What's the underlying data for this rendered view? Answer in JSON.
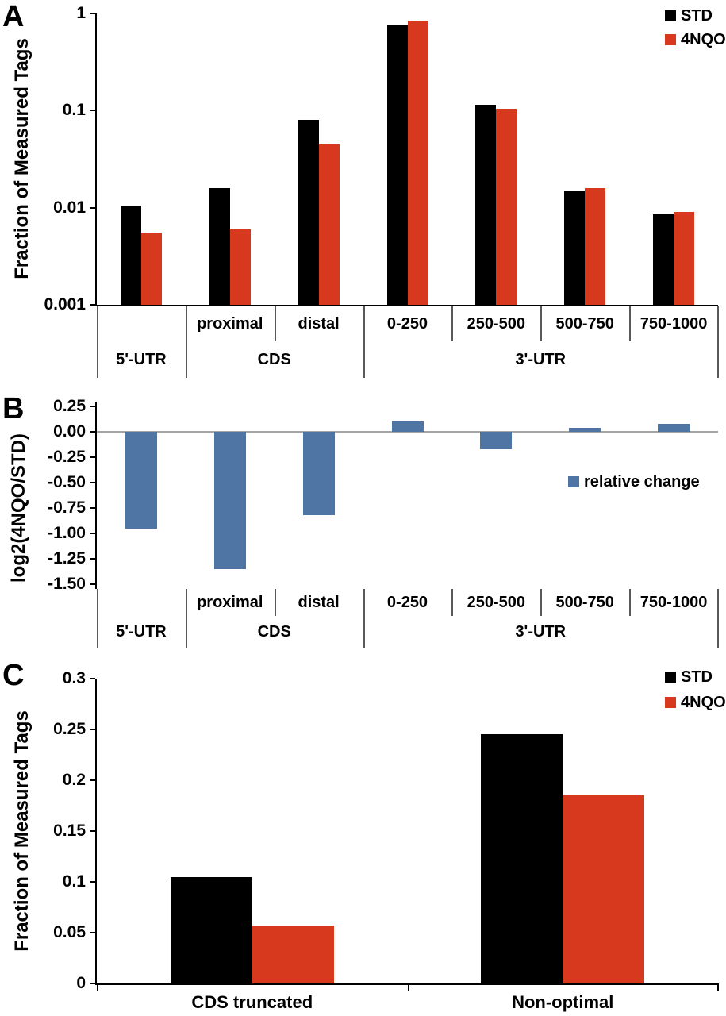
{
  "colors": {
    "std": "#000000",
    "nqo": "#d6391e",
    "blue": "#4e75a3",
    "axis": "#000000",
    "zero_line": "#a6a6a6",
    "separator": "#595959"
  },
  "chart_data": [
    {
      "id": "panel-a",
      "panel_label": "A",
      "type": "bar",
      "scale": "log",
      "title": "",
      "ylabel": "Fraction of Measured Tags",
      "xlabel": "",
      "ylim": [
        0.001,
        1
      ],
      "yticks": [
        "1",
        "0.1",
        "0.01",
        "0.001"
      ],
      "ytick_values": [
        1,
        0.1,
        0.01,
        0.001
      ],
      "grid": false,
      "legend_position": "top-right",
      "categories": [
        "",
        "proximal",
        "distal",
        "0-250",
        "250-500",
        "500-750",
        "750-1000"
      ],
      "groups": [
        {
          "label": "5'-UTR",
          "span": [
            0,
            0
          ]
        },
        {
          "label": "CDS",
          "span": [
            1,
            2
          ]
        },
        {
          "label": "3'-UTR",
          "span": [
            3,
            6
          ]
        }
      ],
      "series": [
        {
          "name": "STD",
          "color_key": "std",
          "values": [
            0.0105,
            0.016,
            0.08,
            0.75,
            0.115,
            0.015,
            0.0085
          ]
        },
        {
          "name": "4NQO",
          "color_key": "nqo",
          "values": [
            0.0055,
            0.006,
            0.045,
            0.85,
            0.105,
            0.016,
            0.009
          ]
        }
      ]
    },
    {
      "id": "panel-b",
      "panel_label": "B",
      "type": "bar",
      "scale": "linear",
      "title": "",
      "ylabel": "log2(4NQO/STD)",
      "xlabel": "",
      "ylim": [
        -1.5,
        0.25
      ],
      "yticks": [
        "0.25",
        "0.00",
        "-0.25",
        "-0.50",
        "-0.75",
        "-1.00",
        "-1.25",
        "-1.50"
      ],
      "ytick_values": [
        0.25,
        0,
        -0.25,
        -0.5,
        -0.75,
        -1,
        -1.25,
        -1.5
      ],
      "grid": false,
      "legend_position": "middle-right",
      "categories": [
        "",
        "proximal",
        "distal",
        "0-250",
        "250-500",
        "500-750",
        "750-1000"
      ],
      "groups": [
        {
          "label": "5'-UTR",
          "span": [
            0,
            0
          ]
        },
        {
          "label": "CDS",
          "span": [
            1,
            2
          ]
        },
        {
          "label": "3'-UTR",
          "span": [
            3,
            6
          ]
        }
      ],
      "series": [
        {
          "name": "relative change",
          "color_key": "blue",
          "values": [
            -0.95,
            -1.35,
            -0.82,
            0.1,
            -0.17,
            0.04,
            0.08
          ]
        }
      ]
    },
    {
      "id": "panel-c",
      "panel_label": "C",
      "type": "bar",
      "scale": "linear",
      "title": "",
      "ylabel": "Fraction of Measured Tags",
      "xlabel": "",
      "ylim": [
        0,
        0.3
      ],
      "yticks": [
        "0.3",
        "0.25",
        "0.2",
        "0.15",
        "0.1",
        "0.05",
        "0"
      ],
      "ytick_values": [
        0.3,
        0.25,
        0.2,
        0.15,
        0.1,
        0.05,
        0
      ],
      "grid": false,
      "legend_position": "top-right",
      "categories": [
        "CDS truncated",
        "Non-optimal"
      ],
      "series": [
        {
          "name": "STD",
          "color_key": "std",
          "values": [
            0.105,
            0.245
          ]
        },
        {
          "name": "4NQO",
          "color_key": "nqo",
          "values": [
            0.057,
            0.185
          ]
        }
      ]
    }
  ]
}
